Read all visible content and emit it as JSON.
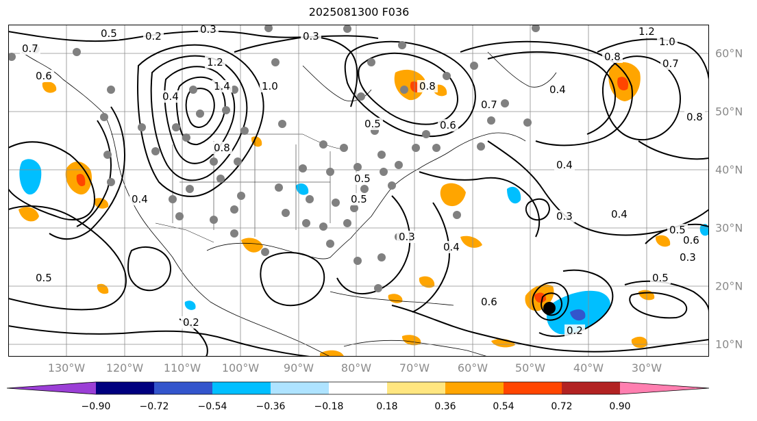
{
  "title": "2025081300 F036",
  "lon_labels": [
    "130°W",
    "120°W",
    "110°W",
    "100°W",
    "90°W",
    "80°W",
    "70°W",
    "60°W",
    "50°W",
    "40°W",
    "30°W"
  ],
  "lat_labels": [
    "60°N",
    "50°N",
    "40°N",
    "30°N",
    "20°N",
    "10°N"
  ],
  "colorbar": {
    "ticks": [
      "−0.90",
      "−0.72",
      "−0.54",
      "−0.36",
      "−0.18",
      "0.18",
      "0.36",
      "0.54",
      "0.72",
      "0.90"
    ],
    "colors": [
      "#9b3fd6",
      "#00007f",
      "#3355cc",
      "#00bfff",
      "#aee3ff",
      "#ffffff",
      "#ffe680",
      "#ffa500",
      "#ff4500",
      "#b22222",
      "#ff7fb0"
    ]
  },
  "contour_labels": [
    "0.2",
    "0.3",
    "0.5",
    "1.2",
    "1.4",
    "0.4",
    "0.6",
    "0.7",
    "0.8",
    "1.0",
    "0.5",
    "0.8",
    "1.2",
    "1.0",
    "0.7",
    "0.8",
    "0.4",
    "0.6",
    "0.7",
    "0.5",
    "0.3",
    "0.4",
    "0.6",
    "0.5",
    "0.2",
    "0.3",
    "0.4",
    "0.8",
    "0.5",
    "0.4",
    "0.6",
    "0.3",
    "0.2",
    "0.5",
    "0.4",
    "0.5",
    "0.3"
  ],
  "colors": {
    "contour": "#000000",
    "land": "#000000",
    "grid": "#8c8c8c",
    "station": "#808080",
    "storm": "#000000"
  }
}
